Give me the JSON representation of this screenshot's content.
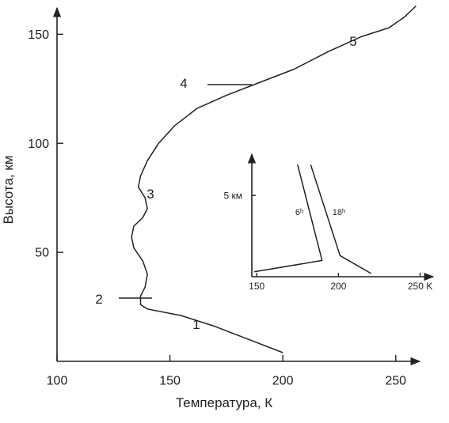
{
  "chart_data": [
    {
      "type": "line",
      "xlabel": "Температура, К",
      "ylabel": "Высота, км",
      "xlim": [
        100,
        255
      ],
      "ylim": [
        0,
        165
      ],
      "xticks": [
        100,
        150,
        200,
        250
      ],
      "yticks": [
        50,
        100,
        150
      ],
      "x": [
        200,
        185,
        170,
        155,
        140,
        137,
        137,
        139,
        140,
        138,
        134,
        133,
        134,
        138,
        140,
        139,
        136,
        137,
        140,
        145,
        152,
        162,
        175,
        190,
        205,
        220,
        235,
        247,
        254,
        259
      ],
      "series": [
        {
          "color": "#222222",
          "values": [
            4,
            10,
            16,
            21,
            24,
            26,
            30,
            34,
            40,
            46,
            52,
            57,
            62,
            66,
            70,
            75,
            80,
            85,
            92,
            100,
            108,
            116,
            122,
            128,
            134,
            142,
            149,
            153,
            158,
            163
          ]
        }
      ],
      "annotations": [
        "1",
        "2",
        "3",
        "4",
        "5"
      ]
    },
    {
      "type": "line",
      "xlim": [
        147,
        257
      ],
      "ylim": [
        0,
        7.2
      ],
      "xticks": [
        150,
        200,
        {
          "value": 250,
          "label": "250 K"
        }
      ],
      "yticks": [
        {
          "value": 5,
          "label": "5 км"
        }
      ],
      "series": [
        {
          "name": "6ʰ",
          "color": "#222222",
          "x": [
            148.5,
            190,
            175
          ],
          "values": [
            0.3,
            1.0,
            6.9
          ]
        },
        {
          "name": "18ʰ",
          "color": "#222222",
          "x": [
            220,
            201,
            183
          ],
          "values": [
            0.2,
            1.3,
            6.9
          ]
        }
      ]
    }
  ]
}
